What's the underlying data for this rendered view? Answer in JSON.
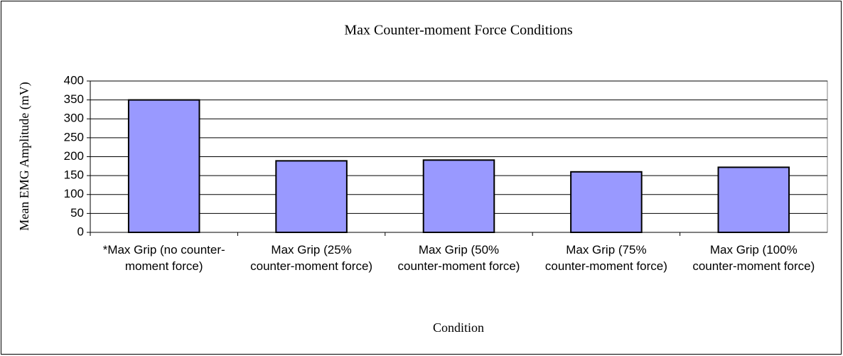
{
  "chart_data": {
    "type": "bar",
    "title": "Max Counter-moment Force Conditions",
    "xlabel": "Condition",
    "ylabel": "Mean EMG Amplitude (mV)",
    "categories": [
      "*Max Grip (no counter-moment force)",
      "Max Grip (25% counter-moment force)",
      "Max Grip (50% counter-moment force)",
      "Max Grip (75% counter-moment force)",
      "Max Grip (100% counter-moment force)"
    ],
    "values": [
      350,
      189,
      191,
      160,
      172
    ],
    "color": "#9999ff",
    "ylim": [
      0,
      400
    ],
    "yticks": [
      0,
      50,
      100,
      150,
      200,
      250,
      300,
      350,
      400
    ],
    "grid": true
  }
}
